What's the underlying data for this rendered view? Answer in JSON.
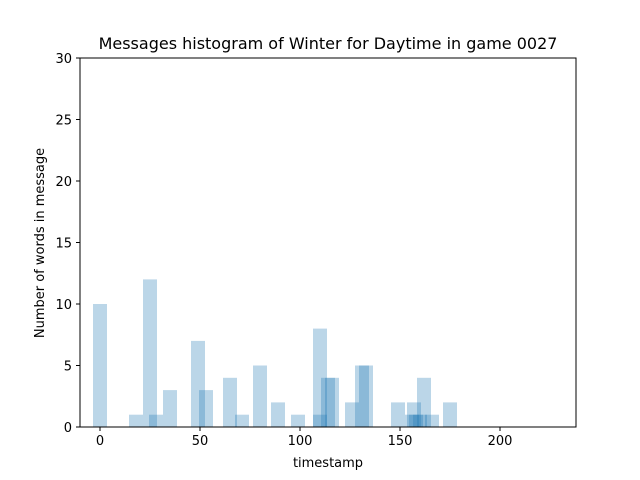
{
  "chart_data": {
    "type": "bar",
    "title": "Messages histogram of Winter for Daytime in game 0027",
    "xlabel": "timestamp",
    "ylabel": "Number of words in message",
    "xlim": [
      -10,
      238
    ],
    "ylim": [
      0,
      30
    ],
    "xticks": [
      "0",
      "50",
      "100",
      "150",
      "200"
    ],
    "xtick_values": [
      0,
      50,
      100,
      150,
      200
    ],
    "yticks": [
      "0",
      "5",
      "10",
      "15",
      "20",
      "25",
      "30"
    ],
    "ytick_values": [
      0,
      5,
      10,
      15,
      20,
      25,
      30
    ],
    "bar_color": "#1f77b4",
    "bar_opacity": 0.3,
    "bar_width": 7,
    "bars": [
      {
        "x": 0,
        "value": 10
      },
      {
        "x": 18,
        "value": 1
      },
      {
        "x": 25,
        "value": 12
      },
      {
        "x": 28,
        "value": 1
      },
      {
        "x": 35,
        "value": 3
      },
      {
        "x": 49,
        "value": 7
      },
      {
        "x": 53,
        "value": 3
      },
      {
        "x": 65,
        "value": 4
      },
      {
        "x": 71,
        "value": 1
      },
      {
        "x": 80,
        "value": 5
      },
      {
        "x": 89,
        "value": 2
      },
      {
        "x": 99,
        "value": 1
      },
      {
        "x": 110,
        "value": 8
      },
      {
        "x": 110,
        "value": 1
      },
      {
        "x": 114,
        "value": 4
      },
      {
        "x": 116,
        "value": 4
      },
      {
        "x": 126,
        "value": 2
      },
      {
        "x": 131,
        "value": 5
      },
      {
        "x": 133,
        "value": 5
      },
      {
        "x": 149,
        "value": 2
      },
      {
        "x": 156,
        "value": 1
      },
      {
        "x": 157,
        "value": 2
      },
      {
        "x": 158,
        "value": 1
      },
      {
        "x": 160,
        "value": 1
      },
      {
        "x": 162,
        "value": 4
      },
      {
        "x": 166,
        "value": 1
      },
      {
        "x": 175,
        "value": 2
      }
    ]
  }
}
